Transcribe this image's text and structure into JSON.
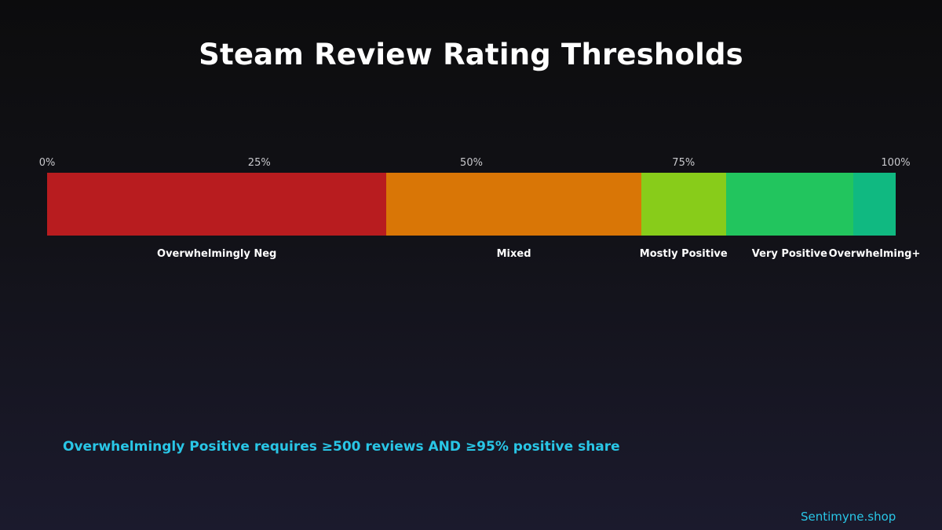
{
  "chart_data": {
    "type": "bar",
    "orientation": "horizontal-stacked",
    "title": "Steam Review Rating Thresholds",
    "xlim": [
      0,
      100
    ],
    "ticks": [
      {
        "value": 0,
        "label": "0%"
      },
      {
        "value": 25,
        "label": "25%"
      },
      {
        "value": 50,
        "label": "50%"
      },
      {
        "value": 75,
        "label": "75%"
      },
      {
        "value": 100,
        "label": "100%"
      }
    ],
    "segments": [
      {
        "label": "Overwhelmingly Neg",
        "start": 0,
        "end": 40,
        "color": "#b81c1f"
      },
      {
        "label": "Mixed",
        "start": 40,
        "end": 70,
        "color": "#d97606"
      },
      {
        "label": "Mostly Positive",
        "start": 70,
        "end": 80,
        "color": "#88cc1a"
      },
      {
        "label": "Very Positive",
        "start": 80,
        "end": 95,
        "color": "#22c55e"
      },
      {
        "label": "Overwhelming+",
        "start": 95,
        "end": 100,
        "color": "#10b981"
      }
    ],
    "annotation": "Overwhelmingly Positive requires ≥500 reviews AND ≥95% positive share"
  },
  "footer": {
    "brand": "Sentimyne.shop"
  }
}
